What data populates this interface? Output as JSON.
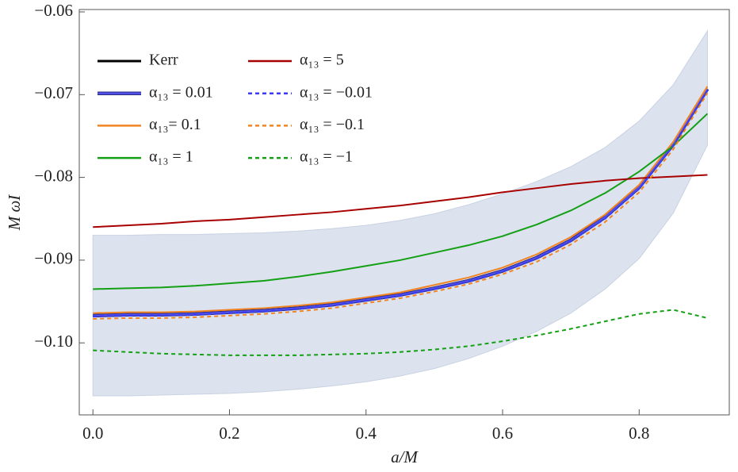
{
  "chart_data": {
    "type": "line",
    "x_label": "a/M",
    "y_label": "M ωI",
    "x": [
      0,
      0.05,
      0.1,
      0.15,
      0.2,
      0.25,
      0.3,
      0.35,
      0.4,
      0.45,
      0.5,
      0.55,
      0.6,
      0.65,
      0.7,
      0.75,
      0.8,
      0.85,
      0.9
    ],
    "xlim": [
      -0.02,
      0.932
    ],
    "ylim": [
      -0.1087,
      -0.06
    ],
    "xticks": [
      {
        "value": 0,
        "label": "0.0"
      },
      0.2,
      0.4,
      0.6,
      0.8
    ],
    "yticks": [
      {
        "value": -0.06,
        "label": "−0.06"
      },
      {
        "value": -0.07,
        "label": "−0.07"
      },
      {
        "value": -0.08,
        "label": "−0.08"
      },
      {
        "value": -0.09,
        "label": "−0.09"
      },
      {
        "value": -0.1,
        "label": "−0.10"
      }
    ],
    "band": {
      "color": "#dce3ee",
      "upper": [
        -0.087,
        -0.087,
        -0.0869,
        -0.0869,
        -0.0868,
        -0.0867,
        -0.0865,
        -0.0862,
        -0.0858,
        -0.0852,
        -0.0844,
        -0.0833,
        -0.082,
        -0.0805,
        -0.0787,
        -0.0764,
        -0.0732,
        -0.0688,
        -0.0623
      ],
      "lower": [
        -0.1064,
        -0.1064,
        -0.1063,
        -0.1062,
        -0.1061,
        -0.1059,
        -0.1056,
        -0.1052,
        -0.1047,
        -0.104,
        -0.1031,
        -0.1019,
        -0.1004,
        -0.0986,
        -0.0964,
        -0.0935,
        -0.0898,
        -0.0843,
        -0.0761
      ]
    },
    "series": [
      {
        "name": "Kerr",
        "color": "#000000",
        "dash": false,
        "values": [
          -0.0967,
          -0.0966,
          -0.0966,
          -0.0965,
          -0.0963,
          -0.0961,
          -0.0958,
          -0.0954,
          -0.0948,
          -0.0942,
          -0.0934,
          -0.0925,
          -0.0913,
          -0.0897,
          -0.0876,
          -0.0848,
          -0.0812,
          -0.076,
          -0.0693
        ]
      },
      {
        "name": "α₁₃ = 0.01",
        "color": "#5050e8",
        "dash": false,
        "values": [
          -0.0967,
          -0.0966,
          -0.0966,
          -0.0965,
          -0.0963,
          -0.0961,
          -0.0958,
          -0.0954,
          -0.0948,
          -0.0942,
          -0.0934,
          -0.0925,
          -0.0913,
          -0.0897,
          -0.0876,
          -0.0848,
          -0.0812,
          -0.076,
          -0.0693
        ]
      },
      {
        "name": "α₁₃= 0.1",
        "color": "#f28522",
        "dash": false,
        "values": [
          -0.0964,
          -0.0963,
          -0.0963,
          -0.0962,
          -0.096,
          -0.0958,
          -0.0955,
          -0.0951,
          -0.0945,
          -0.0939,
          -0.093,
          -0.0921,
          -0.0909,
          -0.0893,
          -0.0872,
          -0.0845,
          -0.0809,
          -0.0757,
          -0.069
        ]
      },
      {
        "name": "α₁₃ = 1",
        "color": "#14a014",
        "dash": false,
        "values": [
          -0.0935,
          -0.0934,
          -0.0933,
          -0.0931,
          -0.0928,
          -0.0925,
          -0.092,
          -0.0914,
          -0.0907,
          -0.09,
          -0.0891,
          -0.0882,
          -0.0871,
          -0.0857,
          -0.084,
          -0.0819,
          -0.0793,
          -0.0762,
          -0.0723
        ]
      },
      {
        "name": "α₁₃ = 5",
        "color": "#a80000",
        "dash": false,
        "values": [
          -0.086,
          -0.0858,
          -0.0856,
          -0.0853,
          -0.0851,
          -0.0848,
          -0.0845,
          -0.0842,
          -0.0838,
          -0.0834,
          -0.0829,
          -0.0824,
          -0.0818,
          -0.0813,
          -0.0808,
          -0.0804,
          -0.0801,
          -0.0799,
          -0.0797
        ]
      },
      {
        "name": "α₁₃ = −0.01",
        "color": "#3a3aff",
        "dash": true,
        "values": [
          -0.0968,
          -0.0967,
          -0.0967,
          -0.0966,
          -0.0964,
          -0.0962,
          -0.0959,
          -0.0955,
          -0.0949,
          -0.0943,
          -0.0935,
          -0.0926,
          -0.0914,
          -0.0898,
          -0.0877,
          -0.085,
          -0.0814,
          -0.0762,
          -0.0695
        ]
      },
      {
        "name": "α₁₃ = −0.1",
        "color": "#f28522",
        "dash": true,
        "values": [
          -0.0971,
          -0.097,
          -0.097,
          -0.0969,
          -0.0967,
          -0.0965,
          -0.0962,
          -0.0958,
          -0.0952,
          -0.0946,
          -0.0938,
          -0.0929,
          -0.0917,
          -0.0902,
          -0.0881,
          -0.0854,
          -0.0818,
          -0.0766,
          -0.0698
        ]
      },
      {
        "name": "α₁₃ = −1",
        "color": "#14a014",
        "dash": true,
        "values": [
          -0.1009,
          -0.1011,
          -0.1013,
          -0.1014,
          -0.1015,
          -0.1015,
          -0.1015,
          -0.1014,
          -0.1013,
          -0.1011,
          -0.1008,
          -0.1004,
          -0.0998,
          -0.0991,
          -0.0983,
          -0.0974,
          -0.0965,
          -0.096,
          -0.097
        ]
      }
    ]
  }
}
